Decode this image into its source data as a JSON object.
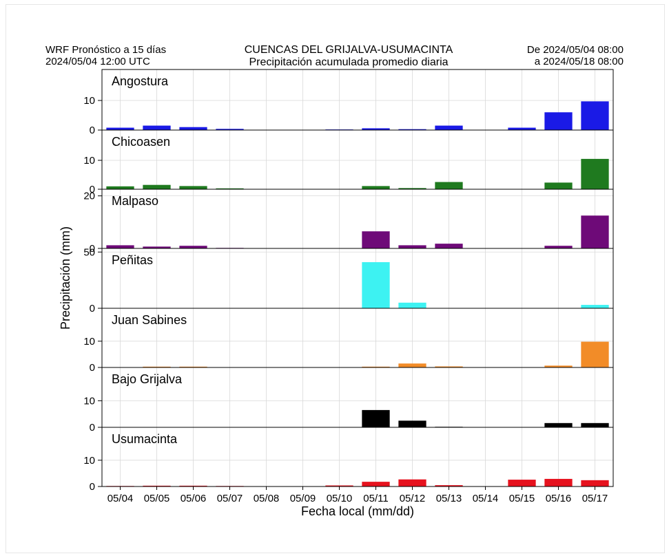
{
  "header": {
    "left_line1": "WRF Pronóstico a 15 días",
    "left_line2": "2024/05/04 12:00 UTC",
    "title_line1": "CUENCAS DEL GRIJALVA-USUMACINTA",
    "title_line2": "Precipitación acumulada promedio diaria",
    "right_line1": "De 2024/05/04 08:00",
    "right_line2": "a 2024/05/18 08:00"
  },
  "chart_data": {
    "type": "bar",
    "xlabel": "Fecha local (mm/dd)",
    "ylabel": "Precipitación (mm)",
    "categories": [
      "05/04",
      "05/05",
      "05/06",
      "05/07",
      "05/08",
      "05/09",
      "05/10",
      "05/11",
      "05/12",
      "05/13",
      "05/14",
      "05/15",
      "05/16",
      "05/17"
    ],
    "grid": true,
    "panels": [
      {
        "name": "Angostura",
        "color": "#1a1ae6",
        "ylim": [
          0,
          20
        ],
        "yticks": [
          0,
          10
        ],
        "values": [
          0.8,
          1.5,
          1.0,
          0.4,
          0,
          0,
          0.2,
          0.6,
          0.3,
          1.5,
          0,
          0.8,
          6.0,
          9.7
        ]
      },
      {
        "name": "Chicoasen",
        "color": "#1f7a1f",
        "ylim": [
          0,
          20
        ],
        "yticks": [
          0,
          10
        ],
        "values": [
          1.0,
          1.5,
          1.1,
          0.3,
          0,
          0,
          0,
          1.1,
          0.4,
          2.5,
          0,
          0,
          2.3,
          10.5
        ]
      },
      {
        "name": "Malpaso",
        "color": "#6e0a78",
        "ylim": [
          0,
          22
        ],
        "yticks": [
          0,
          20
        ],
        "values": [
          1.2,
          0.7,
          1.0,
          0.2,
          0,
          0,
          0,
          6.5,
          1.2,
          1.8,
          0,
          0,
          1.0,
          12.5
        ]
      },
      {
        "name": "Peñitas",
        "color": "#3df2f2",
        "ylim": [
          0,
          52
        ],
        "yticks": [
          0,
          50
        ],
        "values": [
          0,
          0,
          0,
          0,
          0,
          0,
          0,
          41.0,
          5.0,
          0,
          0,
          0,
          0,
          3.0
        ]
      },
      {
        "name": "Juan Sabines",
        "color": "#f28c28",
        "ylim": [
          0,
          22
        ],
        "yticks": [
          0,
          10
        ],
        "values": [
          0,
          0.3,
          0.3,
          0.1,
          0,
          0,
          0,
          0.3,
          1.5,
          0.4,
          0,
          0,
          0.7,
          9.8
        ]
      },
      {
        "name": "Bajo Grijalva",
        "color": "#000000",
        "ylim": [
          0,
          22
        ],
        "yticks": [
          0,
          10
        ],
        "values": [
          0.1,
          0,
          0,
          0,
          0,
          0,
          0,
          6.5,
          2.5,
          0.2,
          0,
          0,
          1.6,
          1.6
        ]
      },
      {
        "name": "Usumacinta",
        "color": "#e6121e",
        "ylim": [
          0,
          22
        ],
        "yticks": [
          0,
          10
        ],
        "values": [
          0.2,
          0.3,
          0.3,
          0.2,
          0,
          0,
          0.4,
          1.8,
          2.7,
          0.5,
          0,
          2.6,
          2.9,
          2.4
        ]
      }
    ]
  }
}
